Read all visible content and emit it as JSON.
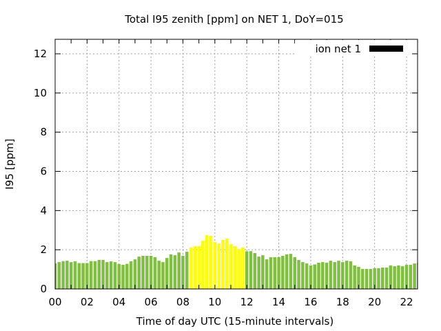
{
  "chart_data": {
    "type": "bar",
    "title": "Total I95 zenith [ppm] on NET 1, DoY=015",
    "xlabel": "Time of day UTC (15-minute intervals)",
    "ylabel": "I95 [ppm]",
    "xlim": [
      0,
      22.69
    ],
    "ylim": [
      0,
      12.74
    ],
    "grid": true,
    "xticks": [
      0,
      2,
      4,
      6,
      8,
      10,
      12,
      14,
      16,
      18,
      20,
      22
    ],
    "xtick_labels": [
      "00",
      "02",
      "04",
      "06",
      "08",
      "10",
      "12",
      "14",
      "16",
      "18",
      "20",
      "22"
    ],
    "yticks": [
      0,
      2,
      4,
      6,
      8,
      10,
      12
    ],
    "ytick_labels": [
      "0",
      "2",
      "4",
      "6",
      "8",
      "10",
      "12"
    ],
    "legend": {
      "label": "ion net 1",
      "color": "#000000",
      "position": "top-right"
    },
    "colors": {
      "normal": "#80c040",
      "highlight": "#ffff00"
    },
    "bar_interval_hours": 0.25,
    "highlight_range": [
      8.5,
      11.75
    ],
    "values": [
      1.3,
      1.37,
      1.42,
      1.44,
      1.37,
      1.41,
      1.32,
      1.32,
      1.32,
      1.42,
      1.42,
      1.48,
      1.48,
      1.37,
      1.41,
      1.37,
      1.27,
      1.23,
      1.28,
      1.41,
      1.51,
      1.65,
      1.69,
      1.69,
      1.69,
      1.62,
      1.44,
      1.37,
      1.58,
      1.76,
      1.72,
      1.86,
      1.69,
      1.9,
      2.11,
      2.18,
      2.18,
      2.46,
      2.74,
      2.71,
      2.39,
      2.32,
      2.5,
      2.57,
      2.29,
      2.18,
      2.04,
      2.11,
      1.92,
      1.93,
      1.83,
      1.65,
      1.72,
      1.51,
      1.62,
      1.62,
      1.62,
      1.69,
      1.76,
      1.79,
      1.62,
      1.48,
      1.37,
      1.3,
      1.2,
      1.25,
      1.34,
      1.37,
      1.34,
      1.44,
      1.37,
      1.44,
      1.37,
      1.44,
      1.41,
      1.2,
      1.13,
      1.02,
      1.02,
      1.02,
      1.06,
      1.06,
      1.09,
      1.09,
      1.2,
      1.16,
      1.2,
      1.16,
      1.23,
      1.23,
      1.3,
      1.34
    ]
  }
}
